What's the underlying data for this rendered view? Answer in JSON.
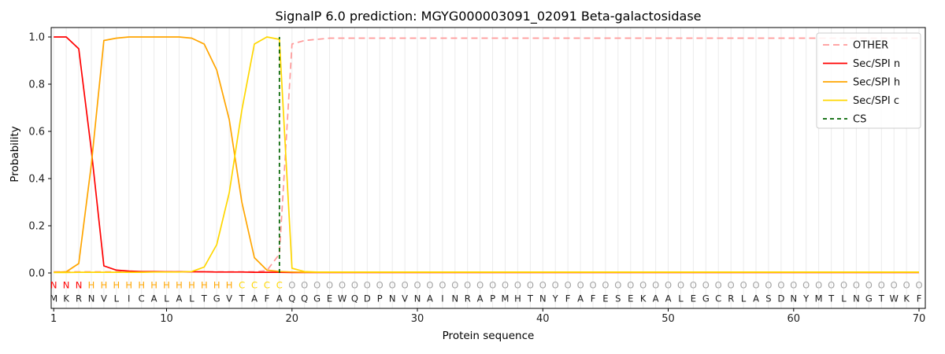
{
  "chart_data": {
    "type": "line",
    "title": "SignalP 6.0 prediction: MGYG000003091_02091 Beta-galactosidase",
    "xlabel": "Protein sequence",
    "ylabel": "Probability",
    "x_ticks": [
      1,
      10,
      20,
      30,
      40,
      50,
      60,
      70
    ],
    "y_ticks": [
      0.0,
      0.2,
      0.4,
      0.6,
      0.8,
      1.0
    ],
    "xlim": [
      0.8,
      70.5
    ],
    "ylim": [
      0.0,
      1.0
    ],
    "grid": "vertical-per-residue",
    "legend_position": "upper-right",
    "series": [
      {
        "name": "OTHER",
        "color": "#ff9999",
        "dash": "8 5",
        "values": [
          0.005,
          0.005,
          0.005,
          0.005,
          0.005,
          0.005,
          0.005,
          0.005,
          0.005,
          0.005,
          0.005,
          0.005,
          0.005,
          0.005,
          0.005,
          0.005,
          0.005,
          0.01,
          0.08,
          0.97,
          0.985,
          0.99,
          0.995,
          0.995,
          0.995,
          0.995,
          0.995,
          0.995,
          0.995,
          0.995,
          0.995,
          0.995,
          0.995,
          0.995,
          0.995,
          0.995,
          0.995,
          0.995,
          0.995,
          0.995,
          0.995,
          0.995,
          0.995,
          0.995,
          0.995,
          0.995,
          0.995,
          0.995,
          0.995,
          0.995,
          0.995,
          0.995,
          0.995,
          0.995,
          0.995,
          0.995,
          0.995,
          0.995,
          0.995,
          0.995,
          0.995,
          0.995,
          0.995,
          0.995,
          0.995,
          0.995,
          0.995,
          0.995,
          0.995,
          0.995
        ]
      },
      {
        "name": "Sec/SPI n",
        "color": "#ff0000",
        "dash": null,
        "values": [
          1.0,
          1.0,
          0.95,
          0.52,
          0.03,
          0.012,
          0.008,
          0.006,
          0.006,
          0.005,
          0.005,
          0.005,
          0.005,
          0.004,
          0.004,
          0.004,
          0.003,
          0.003,
          0.003,
          0.002,
          0.002,
          0.002,
          0.002,
          0.002,
          0.002,
          0.002,
          0.002,
          0.002,
          0.002,
          0.002,
          0.002,
          0.002,
          0.002,
          0.002,
          0.002,
          0.002,
          0.002,
          0.002,
          0.002,
          0.002,
          0.002,
          0.002,
          0.002,
          0.002,
          0.002,
          0.002,
          0.002,
          0.002,
          0.002,
          0.002,
          0.002,
          0.002,
          0.002,
          0.002,
          0.002,
          0.002,
          0.002,
          0.002,
          0.002,
          0.002,
          0.002,
          0.002,
          0.002,
          0.002,
          0.002,
          0.002,
          0.002,
          0.002,
          0.002,
          0.002
        ]
      },
      {
        "name": "Sec/SPI h",
        "color": "#ffa500",
        "dash": null,
        "values": [
          0.003,
          0.005,
          0.04,
          0.46,
          0.985,
          0.995,
          1.0,
          1.0,
          1.0,
          1.0,
          1.0,
          0.995,
          0.97,
          0.86,
          0.65,
          0.3,
          0.065,
          0.012,
          0.006,
          0.004,
          0.003,
          0.003,
          0.003,
          0.003,
          0.003,
          0.003,
          0.003,
          0.003,
          0.003,
          0.003,
          0.003,
          0.003,
          0.003,
          0.003,
          0.003,
          0.003,
          0.003,
          0.003,
          0.003,
          0.003,
          0.003,
          0.003,
          0.003,
          0.003,
          0.003,
          0.003,
          0.003,
          0.003,
          0.003,
          0.003,
          0.003,
          0.003,
          0.003,
          0.003,
          0.003,
          0.003,
          0.003,
          0.003,
          0.003,
          0.003,
          0.003,
          0.003,
          0.003,
          0.003,
          0.003,
          0.003,
          0.003,
          0.003,
          0.003,
          0.003
        ]
      },
      {
        "name": "Sec/SPI c",
        "color": "#ffd700",
        "dash": null,
        "values": [
          0.002,
          0.002,
          0.003,
          0.003,
          0.003,
          0.003,
          0.003,
          0.003,
          0.004,
          0.004,
          0.004,
          0.006,
          0.025,
          0.12,
          0.34,
          0.69,
          0.97,
          1.0,
          0.99,
          0.02,
          0.006,
          0.004,
          0.004,
          0.004,
          0.004,
          0.004,
          0.004,
          0.004,
          0.004,
          0.004,
          0.004,
          0.004,
          0.004,
          0.004,
          0.004,
          0.004,
          0.004,
          0.004,
          0.004,
          0.004,
          0.004,
          0.004,
          0.004,
          0.004,
          0.004,
          0.004,
          0.004,
          0.004,
          0.004,
          0.004,
          0.004,
          0.004,
          0.004,
          0.004,
          0.004,
          0.004,
          0.004,
          0.004,
          0.004,
          0.004,
          0.004,
          0.004,
          0.004,
          0.004,
          0.004,
          0.004,
          0.004,
          0.004,
          0.004,
          0.004
        ]
      }
    ],
    "cs_marker": {
      "name": "CS",
      "color": "#006400",
      "dash": "5 4",
      "position": 19
    },
    "sequence": "MKRNVLICALALTGVTAFAQQGEWQDPNVNAINRAPMHTNYFAFESEKAALEGCRLASDNYMTLNGTWKF",
    "regions": [
      {
        "label": "N",
        "start": 1,
        "end": 3,
        "color": "#ff0000"
      },
      {
        "label": "H",
        "start": 4,
        "end": 15,
        "color": "#ffa500"
      },
      {
        "label": "C",
        "start": 16,
        "end": 19,
        "color": "#ffd700"
      },
      {
        "label": "O",
        "start": 20,
        "end": 70,
        "color": "#a3a3a3"
      }
    ],
    "sequence_color": "#1a1a1a",
    "style": {
      "grid_color": "#ebebeb",
      "frame_color": "#000000",
      "tick_color": "#000000",
      "tick_label_color": "#222222",
      "legend_border_color": "#cccccc"
    }
  }
}
